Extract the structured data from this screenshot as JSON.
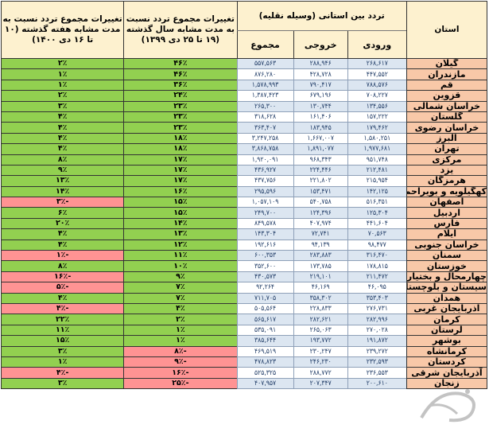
{
  "header": {
    "province": "استان",
    "traffic_group": "تردد بین استانی (وسیله نقلیه)",
    "inbound": "ورودی",
    "outbound": "خروجی",
    "total": "مجموع",
    "year_change": "تغییرات مجموع تردد نسبت به مدت مشابه سال گذشته (۱۹ تا ۲۵ دی ۱۳۹۹)",
    "week_change": "تغییرات مجموع تردد نسبت به مدت مشابه هفته گذشته (۱۰ تا ۱۶ دی ۱۴۰۰)"
  },
  "colors": {
    "header_bg": "#fdf1cf",
    "province_bg": "#f8c8a8",
    "positive": "#92d050",
    "negative": "#ff9393",
    "row_alt": "#dce6f1"
  },
  "rows": [
    {
      "province": "گیلان",
      "inbound": "۲۶۸,۶۱۷",
      "outbound": "۲۸۸,۹۴۶",
      "total": "۵۵۷,۵۶۳",
      "year": "۴۶٪",
      "year_sign": "pos",
      "week": "۲٪",
      "week_sign": "pos"
    },
    {
      "province": "مازندران",
      "inbound": "۴۴۷,۵۵۲",
      "outbound": "۴۲۸,۷۲۸",
      "total": "۸۷۶,۲۸۰",
      "year": "۴۶٪",
      "year_sign": "pos",
      "week": "۱٪",
      "week_sign": "pos"
    },
    {
      "province": "قم",
      "inbound": "۷۸۸,۵۷۶",
      "outbound": "۷۹۰,۴۱۷",
      "total": "۱,۵۷۸,۹۹۳",
      "year": "۳۶٪",
      "year_sign": "pos",
      "week": "۱٪",
      "week_sign": "pos"
    },
    {
      "province": "قزوین",
      "inbound": "۷۰۸,۲۲۷",
      "outbound": "۶۷۹,۱۹۶",
      "total": "۱,۳۸۷,۴۲۳",
      "year": "۲۴٪",
      "year_sign": "pos",
      "week": "۲٪",
      "week_sign": "pos"
    },
    {
      "province": "خراسان شمالی",
      "inbound": "۱۳۴,۵۵۶",
      "outbound": "۱۳۰,۷۴۴",
      "total": "۲۶۵,۳۰۰",
      "year": "۲۳٪",
      "year_sign": "pos",
      "week": "۳٪",
      "week_sign": "pos"
    },
    {
      "province": "گلستان",
      "inbound": "۱۵۷,۲۲۲",
      "outbound": "۱۶۱,۴۰۶",
      "total": "۳۱۸,۶۲۸",
      "year": "۲۳٪",
      "year_sign": "pos",
      "week": "۴٪",
      "week_sign": "pos"
    },
    {
      "province": "خراسان رضوی",
      "inbound": "۱۷۹,۴۶۲",
      "outbound": "۱۸۳,۹۴۵",
      "total": "۳۶۳,۴۰۷",
      "year": "۲۳٪",
      "year_sign": "pos",
      "week": "۴٪",
      "week_sign": "pos"
    },
    {
      "province": "البرز",
      "inbound": "۱,۵۸۰,۲۵۱",
      "outbound": "۱,۶۶۷,۰۰۷",
      "total": "۳,۲۴۷,۲۵۸",
      "year": "۱۸٪",
      "year_sign": "pos",
      "week": "۴٪",
      "week_sign": "pos"
    },
    {
      "province": "تهران",
      "inbound": "۱,۹۷۷,۶۸۱",
      "outbound": "۱,۸۹۱,۰۷۷",
      "total": "۳,۸۶۸,۷۵۸",
      "year": "۱۸٪",
      "year_sign": "pos",
      "week": "۴٪",
      "week_sign": "pos"
    },
    {
      "province": "مرکزی",
      "inbound": "۹۵۱,۷۴۸",
      "outbound": "۹۶۸,۳۴۳",
      "total": "۱,۹۲۰,۰۹۱",
      "year": "۱۷٪",
      "year_sign": "pos",
      "week": "۸٪",
      "week_sign": "pos"
    },
    {
      "province": "یزد",
      "inbound": "۲۱۲,۴۸۱",
      "outbound": "۲۲۴,۴۴۶",
      "total": "۴۳۶,۹۲۷",
      "year": "۱۷٪",
      "year_sign": "pos",
      "week": "۹٪",
      "week_sign": "pos"
    },
    {
      "province": "هرمزگان",
      "inbound": "۲۱۵,۹۵۴",
      "outbound": "۲۲۱,۸۰۲",
      "total": "۴۳۷,۷۵۶",
      "year": "۱۷٪",
      "year_sign": "pos",
      "week": "۱۳٪",
      "week_sign": "pos"
    },
    {
      "province": "کهگیلویه و بویراحمد",
      "inbound": "۱۴۲,۱۲۵",
      "outbound": "۱۵۳,۴۷۱",
      "total": "۲۹۵,۵۹۶",
      "year": "۱۶٪",
      "year_sign": "pos",
      "week": "۱۴٪",
      "week_sign": "pos"
    },
    {
      "province": "اصفهان",
      "inbound": "۵۱۶,۳۵۱",
      "outbound": "۵۴۰,۷۵۸",
      "total": "۱,۰۵۷,۱۰۹",
      "year": "۱۵٪",
      "year_sign": "pos",
      "week": "-۳٪",
      "week_sign": "neg"
    },
    {
      "province": "اردبیل",
      "inbound": "۱۲۵,۳۰۴",
      "outbound": "۱۲۴,۳۹۶",
      "total": "۲۴۹,۷۰۰",
      "year": "۱۵٪",
      "year_sign": "pos",
      "week": "۶٪",
      "week_sign": "pos"
    },
    {
      "province": "فارس",
      "inbound": "۴۴۱,۶۰۴",
      "outbound": "۴۰۷,۹۷۴",
      "total": "۸۴۹,۵۷۸",
      "year": "۱۴٪",
      "year_sign": "pos",
      "week": "۲۰٪",
      "week_sign": "pos"
    },
    {
      "province": "ایلام",
      "inbound": "۷۰,۵۶۳",
      "outbound": "۷۲,۷۴۱",
      "total": "۱۴۳,۳۰۴",
      "year": "۱۳٪",
      "year_sign": "pos",
      "week": "۴٪",
      "week_sign": "pos"
    },
    {
      "province": "خراسان جنوبی",
      "inbound": "۹۸,۴۷۷",
      "outbound": "۹۴,۱۳۹",
      "total": "۱۹۲,۶۱۶",
      "year": "۱۲٪",
      "year_sign": "pos",
      "week": "۴٪",
      "week_sign": "pos"
    },
    {
      "province": "سمنان",
      "inbound": "۳۱۶,۴۷۰",
      "outbound": "۲۸۳,۸۸۳",
      "total": "۶۰۰,۳۵۳",
      "year": "۱۱٪",
      "year_sign": "pos",
      "week": "-۱٪",
      "week_sign": "neg"
    },
    {
      "province": "خوزستان",
      "inbound": "۱۷۸,۸۱۵",
      "outbound": "۱۷۳,۷۸۵",
      "total": "۳۵۲,۶۰۰",
      "year": "۱۰٪",
      "year_sign": "pos",
      "week": "۸٪",
      "week_sign": "pos"
    },
    {
      "province": "چهارمحال و بختیاری",
      "inbound": "۲۱۱,۴۷۲",
      "outbound": "۲۱۹,۱۰۱",
      "total": "۴۳۰,۵۷۳",
      "year": "۹٪",
      "year_sign": "pos",
      "week": "-۱۶٪",
      "week_sign": "neg"
    },
    {
      "province": "سیستان و بلوچستان",
      "inbound": "۴۶,۰۹۵",
      "outbound": "۴۶,۱۶۹",
      "total": "۹۲,۲۶۴",
      "year": "۷٪",
      "year_sign": "pos",
      "week": "-۵٪",
      "week_sign": "neg"
    },
    {
      "province": "همدان",
      "inbound": "۳۵۳,۴۰۳",
      "outbound": "۳۵۸,۳۰۲",
      "total": "۷۱۱,۷۰۵",
      "year": "۷٪",
      "year_sign": "pos",
      "week": "۴٪",
      "week_sign": "pos"
    },
    {
      "province": "آذربایجان غربی",
      "inbound": "۲۷۶,۷۳۱",
      "outbound": "۲۲۸,۸۳۳",
      "total": "۵۰۵,۵۶۴",
      "year": "۴٪",
      "year_sign": "pos",
      "week": "-۴٪",
      "week_sign": "neg"
    },
    {
      "province": "کرمان",
      "inbound": "۲۸۲,۹۹۶",
      "outbound": "۲۸۲,۶۲۱",
      "total": "۵۶۵,۶۱۷",
      "year": "۲٪",
      "year_sign": "pos",
      "week": "۲۲٪",
      "week_sign": "pos"
    },
    {
      "province": "لرستان",
      "inbound": "۲۷۰,۰۲۸",
      "outbound": "۲۶۵,۰۶۳",
      "total": "۵۳۵,۰۹۱",
      "year": "۱٪",
      "year_sign": "pos",
      "week": "۱۱٪",
      "week_sign": "pos"
    },
    {
      "province": "بوشهر",
      "inbound": "۱۹۱,۸۷۲",
      "outbound": "۱۹۳,۷۷۲",
      "total": "۳۸۵,۶۴۴",
      "year": "۱٪",
      "year_sign": "pos",
      "week": "۱۵٪",
      "week_sign": "pos"
    },
    {
      "province": "کرمانشاه",
      "inbound": "۲۳۹,۲۷۲",
      "outbound": "۲۳۰,۲۴۷",
      "total": "۴۶۹,۵۱۹",
      "year": "-۸٪",
      "year_sign": "neg",
      "week": "۳٪",
      "week_sign": "pos"
    },
    {
      "province": "کردستان",
      "inbound": "۲۳۲,۵۹۳",
      "outbound": "۲۴۶,۲۳۰",
      "total": "۴۷۸,۸۲۳",
      "year": "-۹٪",
      "year_sign": "neg",
      "week": "۱٪",
      "week_sign": "pos"
    },
    {
      "province": "آذربایجان شرقی",
      "inbound": "۲۳۶,۵۵۳",
      "outbound": "۲۸۸,۷۷۲",
      "total": "۵۲۵,۳۲۵",
      "year": "-۱۶٪",
      "year_sign": "neg",
      "week": "-۴٪",
      "week_sign": "neg"
    },
    {
      "province": "زنجان",
      "inbound": "۲۰۰,۶۱۰",
      "outbound": "۲۰۷,۳۴۷",
      "total": "۴۰۷,۹۵۷",
      "year": "-۲۵٪",
      "year_sign": "neg",
      "week": "۳٪",
      "week_sign": "pos"
    }
  ]
}
